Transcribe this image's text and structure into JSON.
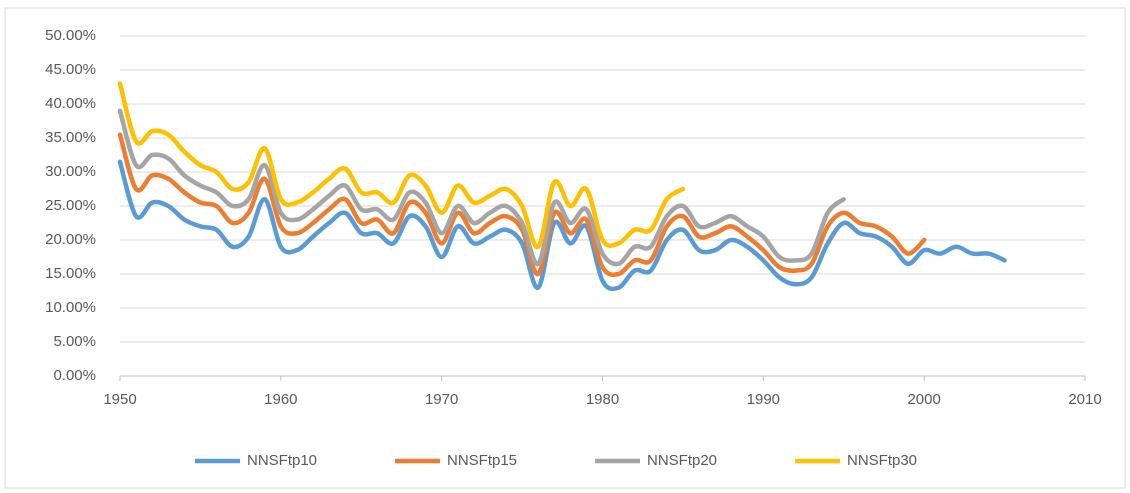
{
  "chart_data": {
    "type": "line",
    "xlim": [
      1950,
      2010
    ],
    "xticks": [
      1950,
      1960,
      1970,
      1980,
      1990,
      2000,
      2010
    ],
    "ylim": [
      0,
      50
    ],
    "yticks": [
      {
        "value": 0,
        "label": "0.00%"
      },
      {
        "value": 5,
        "label": "5.00%"
      },
      {
        "value": 10,
        "label": "10.00%"
      },
      {
        "value": 15,
        "label": "15.00%"
      },
      {
        "value": 20,
        "label": "20.00%"
      },
      {
        "value": 25,
        "label": "25.00%"
      },
      {
        "value": 30,
        "label": "30.00%"
      },
      {
        "value": 35,
        "label": "35.00%"
      },
      {
        "value": 40,
        "label": "40.00%"
      },
      {
        "value": 45,
        "label": "45.00%"
      },
      {
        "value": 50,
        "label": "50.00%"
      }
    ],
    "grid": true,
    "legend": "bottom",
    "smooth": true,
    "series": [
      {
        "name": "NNSFtp10",
        "color": "#5b9bd5",
        "x": [
          1950,
          1951,
          1952,
          1953,
          1954,
          1955,
          1956,
          1957,
          1958,
          1959,
          1960,
          1961,
          1962,
          1963,
          1964,
          1965,
          1966,
          1967,
          1968,
          1969,
          1970,
          1971,
          1972,
          1973,
          1974,
          1975,
          1976,
          1977,
          1978,
          1979,
          1980,
          1981,
          1982,
          1983,
          1984,
          1985,
          1986,
          1987,
          1988,
          1989,
          1990,
          1991,
          1992,
          1993,
          1994,
          1995,
          1996,
          1997,
          1998,
          1999,
          2000,
          2001,
          2002,
          2003,
          2004,
          2005
        ],
        "values": [
          31.5,
          23.5,
          25.5,
          25,
          23,
          22,
          21.5,
          19,
          20.5,
          26,
          19,
          18.5,
          20.5,
          22.5,
          24,
          21,
          21,
          19.5,
          23.5,
          22,
          17.5,
          22,
          19.5,
          20.5,
          21.5,
          19.5,
          13,
          22.5,
          19.5,
          22,
          14,
          13,
          15.5,
          15.5,
          20,
          21.5,
          18.5,
          18.5,
          20,
          19,
          17,
          14.5,
          13.5,
          14.5,
          19.5,
          22.5,
          21,
          20.5,
          19,
          16.5,
          18.5,
          18,
          19,
          18,
          18,
          17
        ]
      },
      {
        "name": "NNSFtp15",
        "color": "#ed7d31",
        "x": [
          1950,
          1951,
          1952,
          1953,
          1954,
          1955,
          1956,
          1957,
          1958,
          1959,
          1960,
          1961,
          1962,
          1963,
          1964,
          1965,
          1966,
          1967,
          1968,
          1969,
          1970,
          1971,
          1972,
          1973,
          1974,
          1975,
          1976,
          1977,
          1978,
          1979,
          1980,
          1981,
          1982,
          1983,
          1984,
          1985,
          1986,
          1987,
          1988,
          1989,
          1990,
          1991,
          1992,
          1993,
          1994,
          1995,
          1996,
          1997,
          1998,
          1999,
          2000
        ],
        "values": [
          35.5,
          27.5,
          29.5,
          29,
          27,
          25.5,
          25,
          22.5,
          24,
          29,
          22,
          21,
          22.5,
          24.5,
          26,
          22.5,
          23,
          21,
          25.5,
          24,
          19.5,
          24,
          21,
          22.5,
          23.5,
          21.5,
          15,
          24,
          21,
          23,
          16,
          15,
          17,
          17,
          22,
          23.5,
          20.5,
          21,
          22,
          20.5,
          18.5,
          16,
          15.5,
          16.5,
          22,
          24,
          22.5,
          22,
          20.5,
          18,
          20
        ]
      },
      {
        "name": "NNSFtp20",
        "color": "#a5a5a5",
        "x": [
          1950,
          1951,
          1952,
          1953,
          1954,
          1955,
          1956,
          1957,
          1958,
          1959,
          1960,
          1961,
          1962,
          1963,
          1964,
          1965,
          1966,
          1967,
          1968,
          1969,
          1970,
          1971,
          1972,
          1973,
          1974,
          1975,
          1976,
          1977,
          1978,
          1979,
          1980,
          1981,
          1982,
          1983,
          1984,
          1985,
          1986,
          1987,
          1988,
          1989,
          1990,
          1991,
          1992,
          1993,
          1994,
          1995
        ],
        "values": [
          39,
          31,
          32.5,
          32,
          29.5,
          28,
          27,
          25,
          26,
          31,
          24,
          23,
          24.5,
          26.5,
          28,
          24.5,
          24.5,
          23,
          27,
          25.5,
          21,
          25,
          22.5,
          24,
          25,
          22.5,
          16.5,
          25.5,
          22.5,
          24.5,
          18,
          16.5,
          19,
          19,
          23.5,
          25,
          22,
          22.5,
          23.5,
          22,
          20.5,
          17.5,
          17,
          18,
          24,
          26
        ]
      },
      {
        "name": "NNSFtp30",
        "color": "#ffc000",
        "x": [
          1950,
          1951,
          1952,
          1953,
          1954,
          1955,
          1956,
          1957,
          1958,
          1959,
          1960,
          1961,
          1962,
          1963,
          1964,
          1965,
          1966,
          1967,
          1968,
          1969,
          1970,
          1971,
          1972,
          1973,
          1974,
          1975,
          1976,
          1977,
          1978,
          1979,
          1980,
          1981,
          1982,
          1983,
          1984,
          1985
        ],
        "values": [
          43,
          34.5,
          36,
          35.5,
          33,
          31,
          30,
          27.5,
          28.5,
          33.5,
          26,
          25.5,
          27,
          29,
          30.5,
          27,
          27,
          25.5,
          29.5,
          28,
          24,
          28,
          25.5,
          26.5,
          27.5,
          25,
          19,
          28.5,
          25,
          27.5,
          20,
          19.5,
          21.5,
          21.5,
          26,
          27.5
        ]
      }
    ]
  }
}
